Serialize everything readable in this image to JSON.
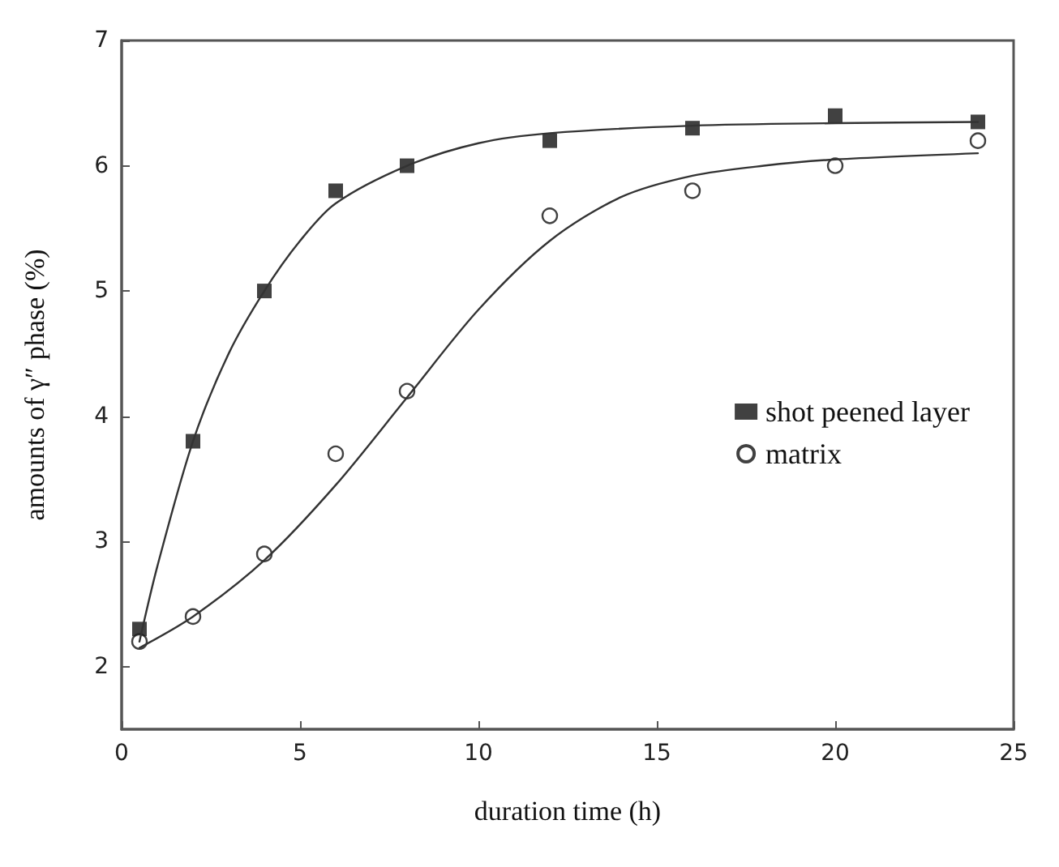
{
  "chart_data": {
    "type": "scatter",
    "xlabel": "duration time (h)",
    "ylabel": "amounts of γ″ phase (%)",
    "xlim": [
      0,
      25
    ],
    "xticks": [
      0,
      5,
      10,
      15,
      20,
      25
    ],
    "ylim": [
      1.5,
      7
    ],
    "yticks": [
      2,
      3,
      4,
      5,
      6,
      7
    ],
    "grid": false,
    "legend": "right",
    "series": [
      {
        "name": "shot peened layer",
        "color": "#111111",
        "marker": "square",
        "x": [
          0.5,
          2,
          4,
          6,
          8,
          12,
          16,
          20,
          24
        ],
        "values": [
          2.3,
          3.8,
          5.0,
          5.8,
          6.0,
          6.2,
          6.3,
          6.4,
          6.35
        ]
      },
      {
        "name": "matrix",
        "color": "#111111",
        "marker": "circle",
        "x": [
          0.5,
          2,
          4,
          6,
          8,
          12,
          16,
          20,
          24
        ],
        "values": [
          2.2,
          2.4,
          2.9,
          3.7,
          4.2,
          5.6,
          5.8,
          6.0,
          6.2
        ]
      },
      {
        "type": "line",
        "color": "#333333",
        "marker": "none",
        "line_style": "solid",
        "x": [
          0.5,
          1,
          2,
          3,
          4,
          5,
          6,
          8,
          10,
          12,
          16,
          20,
          24
        ],
        "values": [
          2.2,
          2.8,
          3.8,
          4.5,
          5.0,
          5.4,
          5.7,
          6.0,
          6.18,
          6.26,
          6.32,
          6.34,
          6.35
        ]
      },
      {
        "type": "line",
        "color": "#333333",
        "marker": "none",
        "line_style": "solid",
        "x": [
          0.5,
          2,
          4,
          6,
          8,
          10,
          12,
          14,
          16,
          18,
          20,
          24
        ],
        "values": [
          2.15,
          2.4,
          2.85,
          3.45,
          4.15,
          4.85,
          5.4,
          5.75,
          5.92,
          6.0,
          6.05,
          6.1
        ]
      }
    ]
  }
}
